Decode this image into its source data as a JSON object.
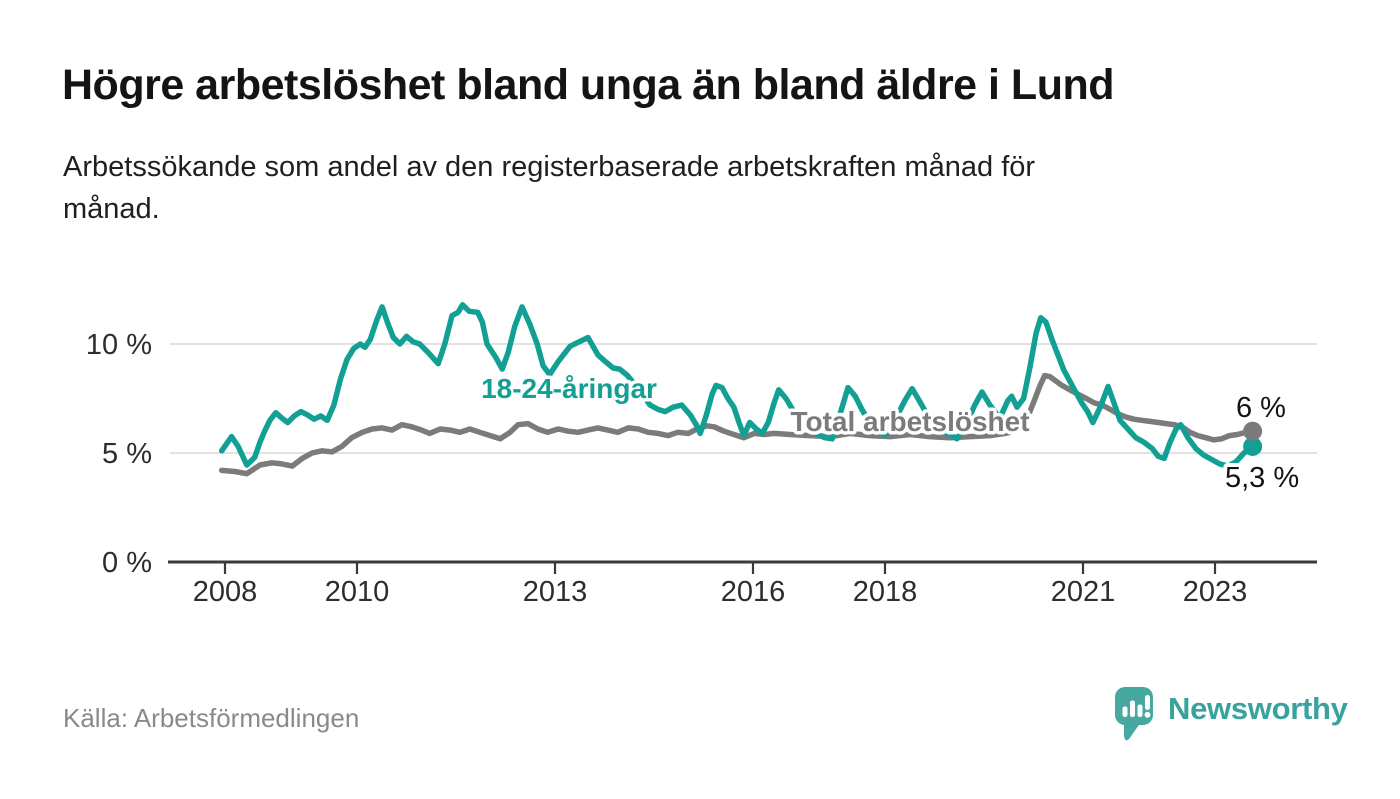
{
  "header": {
    "title": "Högre arbetslöshet bland unga än bland äldre i Lund",
    "subtitle": "Arbetssökande som andel av den registerbaserade arbetskraften månad för\nmånad."
  },
  "footer": {
    "source": "Källa: Arbetsförmedlingen",
    "brand_name": "Newsworthy",
    "brand_icon": "bar-chart-speech-bubble-icon"
  },
  "colors": {
    "youth_line": "#12a094",
    "total_line": "#7b7b7b",
    "gridline": "#d8d8d8",
    "axis": "#3a3a3a",
    "tick_text": "#2d2d2d",
    "end_label_text": "#141414",
    "source_text": "#8a8a8a",
    "brand_teal": "#47a8a2",
    "background": "#ffffff"
  },
  "chart_data": {
    "type": "line",
    "title": "Högre arbetslöshet bland unga än bland äldre i Lund",
    "subtitle": "Arbetssökande som andel av den registerbaserade arbetskraften månad för månad.",
    "xlabel": "",
    "ylabel": "",
    "unit": "%",
    "grid": true,
    "legend_position": "inline-annotations",
    "xlim": [
      2007.2,
      2024.5
    ],
    "ylim": [
      0,
      12.5
    ],
    "yticks": [
      {
        "value": 0,
        "label": "0 %"
      },
      {
        "value": 5,
        "label": "5 %"
      },
      {
        "value": 10,
        "label": "10 %"
      }
    ],
    "xticks": [
      {
        "year": 2008,
        "label": "2008"
      },
      {
        "year": 2010,
        "label": "2010"
      },
      {
        "year": 2013,
        "label": "2013"
      },
      {
        "year": 2016,
        "label": "2016"
      },
      {
        "year": 2018,
        "label": "2018"
      },
      {
        "year": 2021,
        "label": "2021"
      },
      {
        "year": 2023,
        "label": "2023"
      }
    ],
    "series": [
      {
        "name": "18-24-åringar",
        "color": "#12a094",
        "end_label": "5,3 %",
        "end_value": 5.3,
        "points": [
          [
            2007.95,
            5.1
          ],
          [
            2008.1,
            5.75
          ],
          [
            2008.2,
            5.3
          ],
          [
            2008.33,
            4.45
          ],
          [
            2008.45,
            4.8
          ],
          [
            2008.53,
            5.5
          ],
          [
            2008.6,
            6.0
          ],
          [
            2008.68,
            6.5
          ],
          [
            2008.77,
            6.85
          ],
          [
            2008.86,
            6.6
          ],
          [
            2008.95,
            6.4
          ],
          [
            2009.05,
            6.7
          ],
          [
            2009.15,
            6.9
          ],
          [
            2009.25,
            6.75
          ],
          [
            2009.35,
            6.55
          ],
          [
            2009.45,
            6.7
          ],
          [
            2009.55,
            6.5
          ],
          [
            2009.65,
            7.2
          ],
          [
            2009.75,
            8.4
          ],
          [
            2009.85,
            9.3
          ],
          [
            2009.95,
            9.8
          ],
          [
            2010.05,
            10.0
          ],
          [
            2010.12,
            9.85
          ],
          [
            2010.2,
            10.2
          ],
          [
            2010.3,
            11.1
          ],
          [
            2010.38,
            11.7
          ],
          [
            2010.46,
            11.0
          ],
          [
            2010.55,
            10.3
          ],
          [
            2010.65,
            10.0
          ],
          [
            2010.75,
            10.35
          ],
          [
            2010.85,
            10.1
          ],
          [
            2010.95,
            10.0
          ],
          [
            2011.08,
            9.6
          ],
          [
            2011.23,
            9.1
          ],
          [
            2011.33,
            10.0
          ],
          [
            2011.44,
            11.3
          ],
          [
            2011.53,
            11.45
          ],
          [
            2011.6,
            11.8
          ],
          [
            2011.7,
            11.5
          ],
          [
            2011.83,
            11.45
          ],
          [
            2011.9,
            11.0
          ],
          [
            2011.97,
            10.0
          ],
          [
            2012.1,
            9.4
          ],
          [
            2012.2,
            8.85
          ],
          [
            2012.29,
            9.6
          ],
          [
            2012.39,
            10.8
          ],
          [
            2012.5,
            11.7
          ],
          [
            2012.62,
            10.9
          ],
          [
            2012.73,
            10.0
          ],
          [
            2012.82,
            9.0
          ],
          [
            2012.92,
            8.6
          ],
          [
            2013.05,
            9.2
          ],
          [
            2013.23,
            9.9
          ],
          [
            2013.5,
            10.3
          ],
          [
            2013.65,
            9.5
          ],
          [
            2013.76,
            9.2
          ],
          [
            2013.88,
            8.9
          ],
          [
            2013.98,
            8.85
          ],
          [
            2014.1,
            8.55
          ],
          [
            2014.3,
            7.8
          ],
          [
            2014.44,
            7.2
          ],
          [
            2014.56,
            7.0
          ],
          [
            2014.67,
            6.9
          ],
          [
            2014.79,
            7.1
          ],
          [
            2014.92,
            7.2
          ],
          [
            2015.05,
            6.75
          ],
          [
            2015.14,
            6.3
          ],
          [
            2015.2,
            5.9
          ],
          [
            2015.29,
            6.7
          ],
          [
            2015.38,
            7.7
          ],
          [
            2015.44,
            8.1
          ],
          [
            2015.53,
            8.0
          ],
          [
            2015.62,
            7.5
          ],
          [
            2015.71,
            7.1
          ],
          [
            2015.8,
            6.3
          ],
          [
            2015.86,
            5.8
          ],
          [
            2015.95,
            6.4
          ],
          [
            2016.05,
            6.1
          ],
          [
            2016.14,
            5.9
          ],
          [
            2016.23,
            6.4
          ],
          [
            2016.32,
            7.3
          ],
          [
            2016.39,
            7.9
          ],
          [
            2016.5,
            7.5
          ],
          [
            2016.64,
            6.8
          ],
          [
            2016.79,
            6.2
          ],
          [
            2016.94,
            5.9
          ],
          [
            2017.09,
            5.7
          ],
          [
            2017.2,
            5.65
          ],
          [
            2017.32,
            6.8
          ],
          [
            2017.44,
            8.0
          ],
          [
            2017.55,
            7.6
          ],
          [
            2017.65,
            7.0
          ],
          [
            2017.77,
            6.4
          ],
          [
            2017.89,
            6.0
          ],
          [
            2018.0,
            5.85
          ],
          [
            2018.15,
            6.5
          ],
          [
            2018.3,
            7.4
          ],
          [
            2018.41,
            7.95
          ],
          [
            2018.5,
            7.5
          ],
          [
            2018.65,
            6.7
          ],
          [
            2018.8,
            6.1
          ],
          [
            2018.95,
            5.9
          ],
          [
            2019.09,
            5.65
          ],
          [
            2019.21,
            6.2
          ],
          [
            2019.36,
            7.2
          ],
          [
            2019.47,
            7.8
          ],
          [
            2019.59,
            7.2
          ],
          [
            2019.74,
            6.6
          ],
          [
            2019.86,
            7.4
          ],
          [
            2019.92,
            7.6
          ],
          [
            2020.0,
            7.1
          ],
          [
            2020.1,
            7.5
          ],
          [
            2020.2,
            9.0
          ],
          [
            2020.29,
            10.5
          ],
          [
            2020.36,
            11.2
          ],
          [
            2020.44,
            11.0
          ],
          [
            2020.53,
            10.2
          ],
          [
            2020.62,
            9.5
          ],
          [
            2020.71,
            8.8
          ],
          [
            2020.8,
            8.3
          ],
          [
            2020.89,
            7.8
          ],
          [
            2020.98,
            7.3
          ],
          [
            2021.07,
            6.9
          ],
          [
            2021.15,
            6.4
          ],
          [
            2021.26,
            7.1
          ],
          [
            2021.38,
            8.05
          ],
          [
            2021.48,
            7.2
          ],
          [
            2021.56,
            6.5
          ],
          [
            2021.68,
            6.1
          ],
          [
            2021.8,
            5.7
          ],
          [
            2021.92,
            5.5
          ],
          [
            2022.05,
            5.2
          ],
          [
            2022.14,
            4.85
          ],
          [
            2022.23,
            4.75
          ],
          [
            2022.32,
            5.5
          ],
          [
            2022.41,
            6.1
          ],
          [
            2022.48,
            6.3
          ],
          [
            2022.59,
            5.7
          ],
          [
            2022.71,
            5.2
          ],
          [
            2022.83,
            4.9
          ],
          [
            2022.95,
            4.7
          ],
          [
            2023.07,
            4.5
          ],
          [
            2023.2,
            4.4
          ],
          [
            2023.32,
            4.6
          ],
          [
            2023.44,
            5.0
          ],
          [
            2023.57,
            5.3
          ]
        ]
      },
      {
        "name": "Total arbetslöshet",
        "color": "#7b7b7b",
        "end_label": "6 %",
        "end_value": 6.0,
        "points": [
          [
            2007.95,
            4.2
          ],
          [
            2008.15,
            4.15
          ],
          [
            2008.33,
            4.05
          ],
          [
            2008.53,
            4.45
          ],
          [
            2008.71,
            4.55
          ],
          [
            2008.86,
            4.5
          ],
          [
            2009.02,
            4.4
          ],
          [
            2009.17,
            4.75
          ],
          [
            2009.32,
            5.0
          ],
          [
            2009.47,
            5.1
          ],
          [
            2009.62,
            5.05
          ],
          [
            2009.77,
            5.3
          ],
          [
            2009.92,
            5.7
          ],
          [
            2010.08,
            5.95
          ],
          [
            2010.23,
            6.1
          ],
          [
            2010.38,
            6.15
          ],
          [
            2010.53,
            6.05
          ],
          [
            2010.68,
            6.3
          ],
          [
            2010.83,
            6.2
          ],
          [
            2010.98,
            6.05
          ],
          [
            2011.1,
            5.9
          ],
          [
            2011.26,
            6.1
          ],
          [
            2011.41,
            6.05
          ],
          [
            2011.56,
            5.95
          ],
          [
            2011.71,
            6.1
          ],
          [
            2011.86,
            5.95
          ],
          [
            2012.02,
            5.8
          ],
          [
            2012.17,
            5.65
          ],
          [
            2012.32,
            5.95
          ],
          [
            2012.44,
            6.3
          ],
          [
            2012.59,
            6.35
          ],
          [
            2012.74,
            6.1
          ],
          [
            2012.89,
            5.95
          ],
          [
            2013.05,
            6.1
          ],
          [
            2013.2,
            6.0
          ],
          [
            2013.35,
            5.95
          ],
          [
            2013.5,
            6.05
          ],
          [
            2013.65,
            6.15
          ],
          [
            2013.8,
            6.05
          ],
          [
            2013.95,
            5.95
          ],
          [
            2014.11,
            6.15
          ],
          [
            2014.26,
            6.1
          ],
          [
            2014.41,
            5.95
          ],
          [
            2014.56,
            5.9
          ],
          [
            2014.71,
            5.8
          ],
          [
            2014.86,
            5.95
          ],
          [
            2015.02,
            5.9
          ],
          [
            2015.15,
            6.1
          ],
          [
            2015.3,
            6.25
          ],
          [
            2015.41,
            6.2
          ],
          [
            2015.56,
            6.0
          ],
          [
            2015.71,
            5.85
          ],
          [
            2015.86,
            5.7
          ],
          [
            2016.02,
            5.9
          ],
          [
            2016.17,
            5.85
          ],
          [
            2016.32,
            5.9
          ],
          [
            2016.56,
            5.85
          ],
          [
            2016.86,
            5.8
          ],
          [
            2017.17,
            5.75
          ],
          [
            2017.47,
            5.9
          ],
          [
            2017.77,
            5.8
          ],
          [
            2018.08,
            5.75
          ],
          [
            2018.38,
            5.85
          ],
          [
            2018.68,
            5.75
          ],
          [
            2018.98,
            5.7
          ],
          [
            2019.29,
            5.75
          ],
          [
            2019.59,
            5.8
          ],
          [
            2019.82,
            5.9
          ],
          [
            2019.97,
            6.0
          ],
          [
            2020.08,
            6.2
          ],
          [
            2020.17,
            6.7
          ],
          [
            2020.26,
            7.4
          ],
          [
            2020.35,
            8.1
          ],
          [
            2020.42,
            8.55
          ],
          [
            2020.5,
            8.5
          ],
          [
            2020.59,
            8.3
          ],
          [
            2020.68,
            8.1
          ],
          [
            2020.8,
            7.9
          ],
          [
            2020.92,
            7.7
          ],
          [
            2021.05,
            7.5
          ],
          [
            2021.17,
            7.3
          ],
          [
            2021.29,
            7.2
          ],
          [
            2021.41,
            7.0
          ],
          [
            2021.53,
            6.8
          ],
          [
            2021.65,
            6.65
          ],
          [
            2021.77,
            6.55
          ],
          [
            2021.89,
            6.5
          ],
          [
            2022.02,
            6.45
          ],
          [
            2022.14,
            6.4
          ],
          [
            2022.26,
            6.35
          ],
          [
            2022.38,
            6.3
          ],
          [
            2022.5,
            6.2
          ],
          [
            2022.62,
            5.95
          ],
          [
            2022.74,
            5.8
          ],
          [
            2022.86,
            5.7
          ],
          [
            2022.98,
            5.6
          ],
          [
            2023.1,
            5.65
          ],
          [
            2023.22,
            5.8
          ],
          [
            2023.34,
            5.85
          ],
          [
            2023.47,
            5.95
          ],
          [
            2023.57,
            6.0
          ]
        ]
      }
    ],
    "annotations": [
      {
        "text": "18-24-åringar",
        "x": 2013.2,
        "y": 8.0,
        "role": "series-label",
        "series": 0
      },
      {
        "text": "Total arbetslöshet",
        "x": 2018.4,
        "y": 6.5,
        "role": "series-label",
        "series": 1
      },
      {
        "text": "6 %",
        "x": 2023.65,
        "y": 7.1,
        "role": "end-value",
        "series": 1
      },
      {
        "text": "5,3 %",
        "x": 2023.75,
        "y": 4.1,
        "role": "end-value",
        "series": 0
      }
    ]
  }
}
